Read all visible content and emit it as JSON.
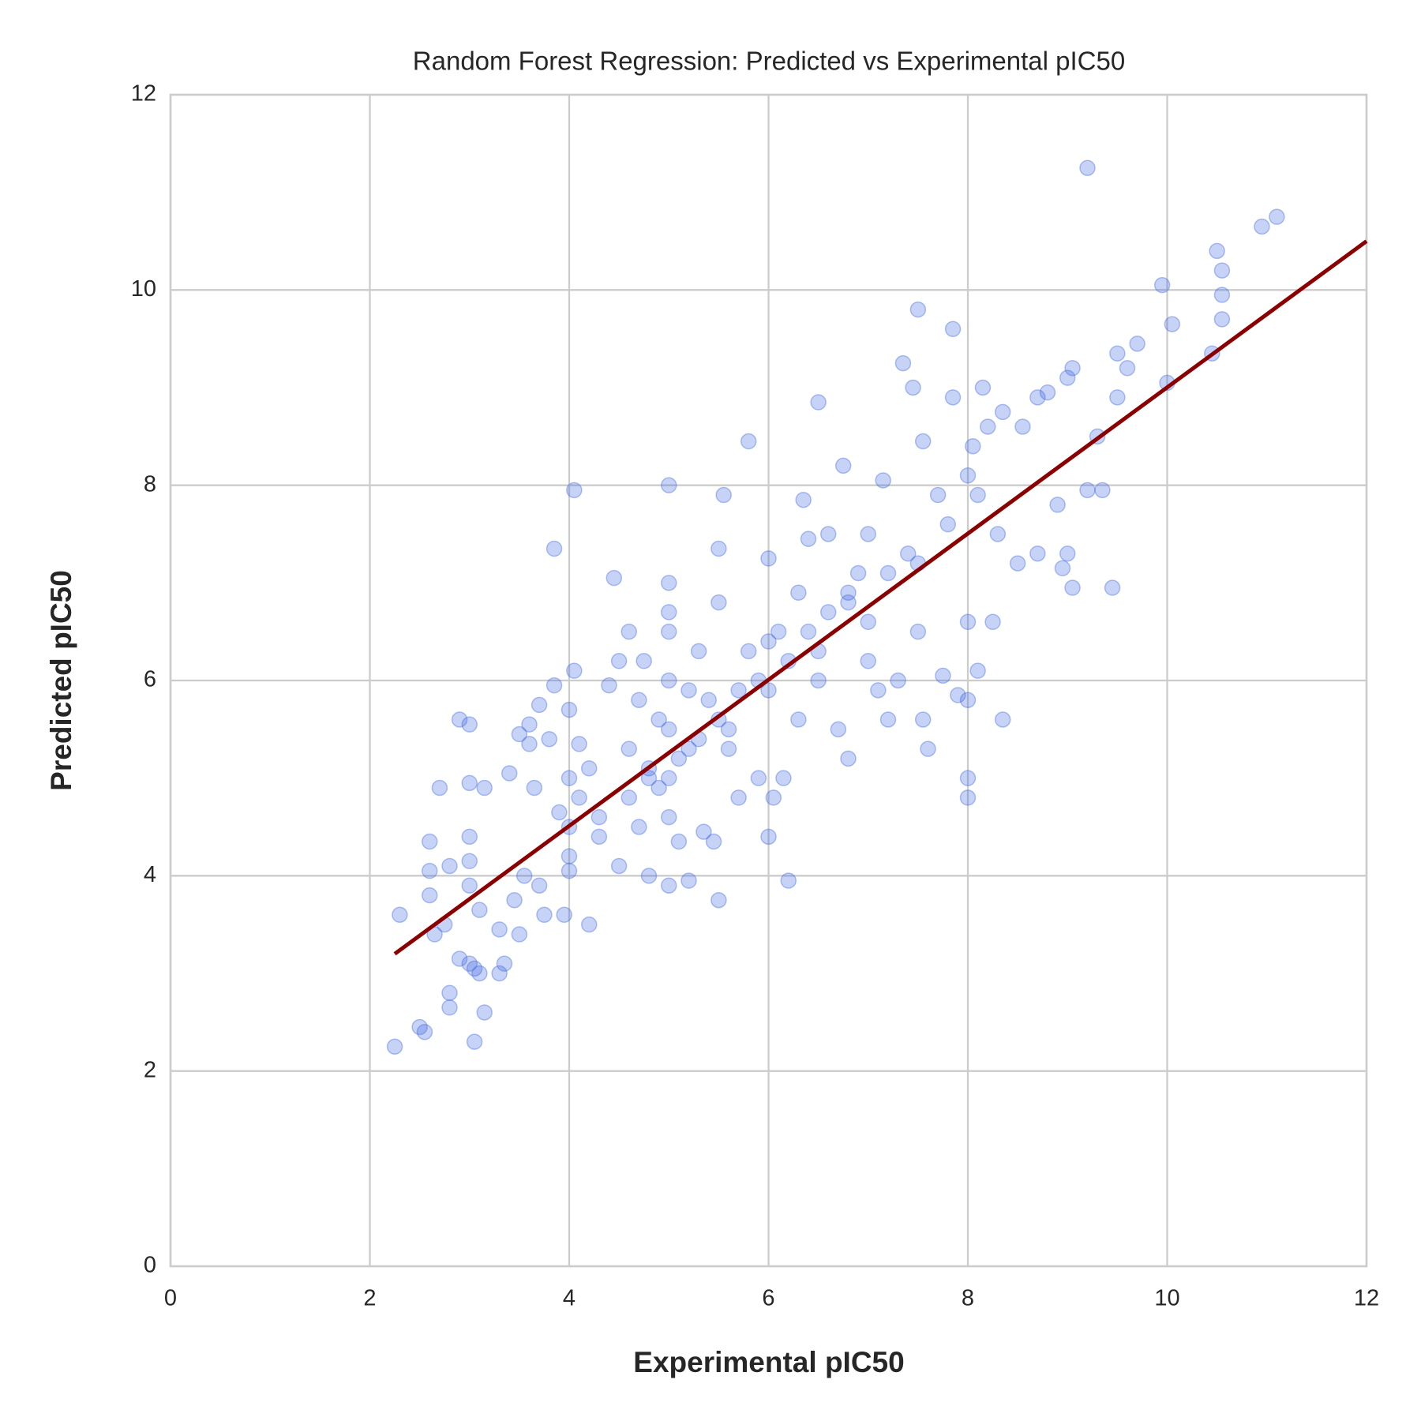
{
  "chart_data": {
    "type": "scatter",
    "title": "Random Forest Regression: Predicted vs Experimental pIC50",
    "xlabel": "Experimental pIC50",
    "ylabel": "Predicted pIC50",
    "color": "#4169e1",
    "alpha": 0.3,
    "x": [
      2.25,
      2.3,
      2.5,
      2.55,
      2.6,
      2.6,
      2.6,
      2.65,
      2.7,
      2.75,
      2.8,
      2.8,
      2.8,
      2.9,
      2.9,
      3,
      3,
      3,
      3,
      3,
      3,
      3.05,
      3.05,
      3.1,
      3.1,
      3.15,
      3.15,
      3.3,
      3.3,
      3.35,
      3.4,
      3.45,
      3.5,
      3.5,
      3.55,
      3.6,
      3.6,
      3.65,
      3.7,
      3.7,
      3.75,
      3.8,
      3.85,
      3.85,
      3.9,
      3.95,
      4,
      4,
      4,
      4,
      4,
      4.05,
      4.05,
      4.1,
      4.2,
      4.2,
      4.3,
      4.4,
      4.45,
      4.5,
      4.5,
      4.6,
      4.6,
      4.7,
      4.7,
      4.75,
      4.8,
      4.8,
      4.9,
      5,
      5,
      5,
      5,
      5,
      5,
      5,
      5,
      5,
      5.1,
      5.2,
      5.2,
      5.3,
      5.35,
      5.4,
      5.45,
      5.5,
      5.5,
      5.5,
      5.55,
      5.6,
      5.7,
      5.8,
      5.8,
      5.9,
      6,
      6,
      6,
      6.05,
      6.1,
      6.15,
      6.2,
      6.3,
      6.35,
      6.4,
      6.5,
      6.5,
      6.6,
      6.7,
      6.75,
      6.8,
      6.8,
      6.9,
      7,
      7,
      7.1,
      7.15,
      7.2,
      7.3,
      7.35,
      7.4,
      7.45,
      7.5,
      7.5,
      7.55,
      7.55,
      7.6,
      7.7,
      7.75,
      7.85,
      7.85,
      7.9,
      8,
      8,
      8,
      8,
      8,
      8.05,
      8.1,
      8.15,
      8.2,
      8.25,
      8.3,
      8.35,
      8.35,
      8.5,
      8.55,
      8.7,
      8.7,
      8.8,
      8.9,
      8.95,
      9,
      9,
      9.05,
      9.05,
      9.2,
      9.2,
      9.3,
      9.35,
      9.45,
      9.5,
      9.5,
      9.6,
      9.7,
      9.95,
      10,
      10.05,
      10.45,
      10.5,
      10.55,
      10.55,
      10.55,
      10.95,
      11.1,
      4.6,
      4.8,
      5.1,
      5.3,
      5.5,
      5.7,
      5.9,
      6.2,
      6.4,
      6.6,
      6.8,
      7,
      7.2,
      4.3,
      4.1,
      5.6,
      6,
      6.5,
      7.5,
      7.8,
      8.1,
      5.2,
      4.9,
      6.3
    ],
    "y": [
      2.25,
      3.6,
      2.45,
      2.4,
      3.8,
      4.35,
      4.05,
      3.4,
      4.9,
      3.5,
      2.8,
      2.65,
      4.1,
      5.6,
      3.15,
      5.55,
      4.95,
      4.4,
      4.15,
      3.9,
      3.1,
      3.05,
      2.3,
      3.65,
      3,
      2.6,
      4.9,
      3,
      3.45,
      3.1,
      5.05,
      3.75,
      5.45,
      3.4,
      4,
      5.55,
      5.35,
      4.9,
      5.75,
      3.9,
      3.6,
      5.4,
      5.95,
      7.35,
      4.65,
      3.6,
      5,
      4.5,
      4.2,
      4.05,
      5.7,
      6.1,
      7.95,
      5.35,
      3.5,
      5.1,
      4.4,
      5.95,
      7.05,
      4.1,
      6.2,
      6.5,
      5.3,
      5.8,
      4.5,
      6.2,
      4,
      5,
      5.6,
      8,
      7,
      6.7,
      6.5,
      6,
      5.5,
      5,
      4.6,
      3.9,
      4.35,
      3.95,
      5.3,
      6.3,
      4.45,
      5.8,
      4.35,
      7.35,
      6.8,
      3.75,
      7.9,
      5.5,
      4.8,
      8.45,
      6.3,
      5,
      7.25,
      5.9,
      4.4,
      4.8,
      6.5,
      5,
      3.95,
      5.6,
      7.85,
      7.45,
      8.85,
      6.3,
      7.5,
      5.5,
      8.2,
      5.2,
      6.8,
      7.1,
      6.2,
      7.5,
      5.9,
      8.05,
      5.6,
      6,
      9.25,
      7.3,
      9,
      9.8,
      6.5,
      8.45,
      5.6,
      5.3,
      7.9,
      6.05,
      9.6,
      8.9,
      5.85,
      6.6,
      5.8,
      5,
      4.8,
      8.1,
      8.4,
      6.1,
      9,
      8.6,
      6.6,
      7.5,
      8.75,
      5.6,
      7.2,
      8.6,
      8.9,
      7.3,
      8.95,
      7.8,
      7.15,
      9.1,
      7.3,
      9.2,
      6.95,
      11.25,
      7.95,
      8.5,
      7.95,
      6.95,
      9.35,
      8.9,
      9.2,
      9.45,
      10.05,
      9.05,
      9.65,
      9.35,
      10.4,
      10.2,
      9.95,
      9.7,
      10.65,
      10.75,
      4.8,
      5.1,
      5.2,
      5.4,
      5.6,
      5.9,
      6,
      6.2,
      6.5,
      6.7,
      6.9,
      6.6,
      7.1,
      4.6,
      4.8,
      5.3,
      6.4,
      6,
      7.2,
      7.6,
      7.9,
      5.9,
      4.9,
      6.9
    ],
    "regression": {
      "color": "#8b0000",
      "x": [
        2.25,
        12
      ],
      "y": [
        3.2,
        10.5
      ]
    },
    "xlim": [
      0,
      12
    ],
    "ylim": [
      0,
      12
    ],
    "xticks": [
      0,
      2,
      4,
      6,
      8,
      10,
      12
    ],
    "yticks": [
      0,
      2,
      4,
      6,
      8,
      10,
      12
    ],
    "grid": true
  }
}
